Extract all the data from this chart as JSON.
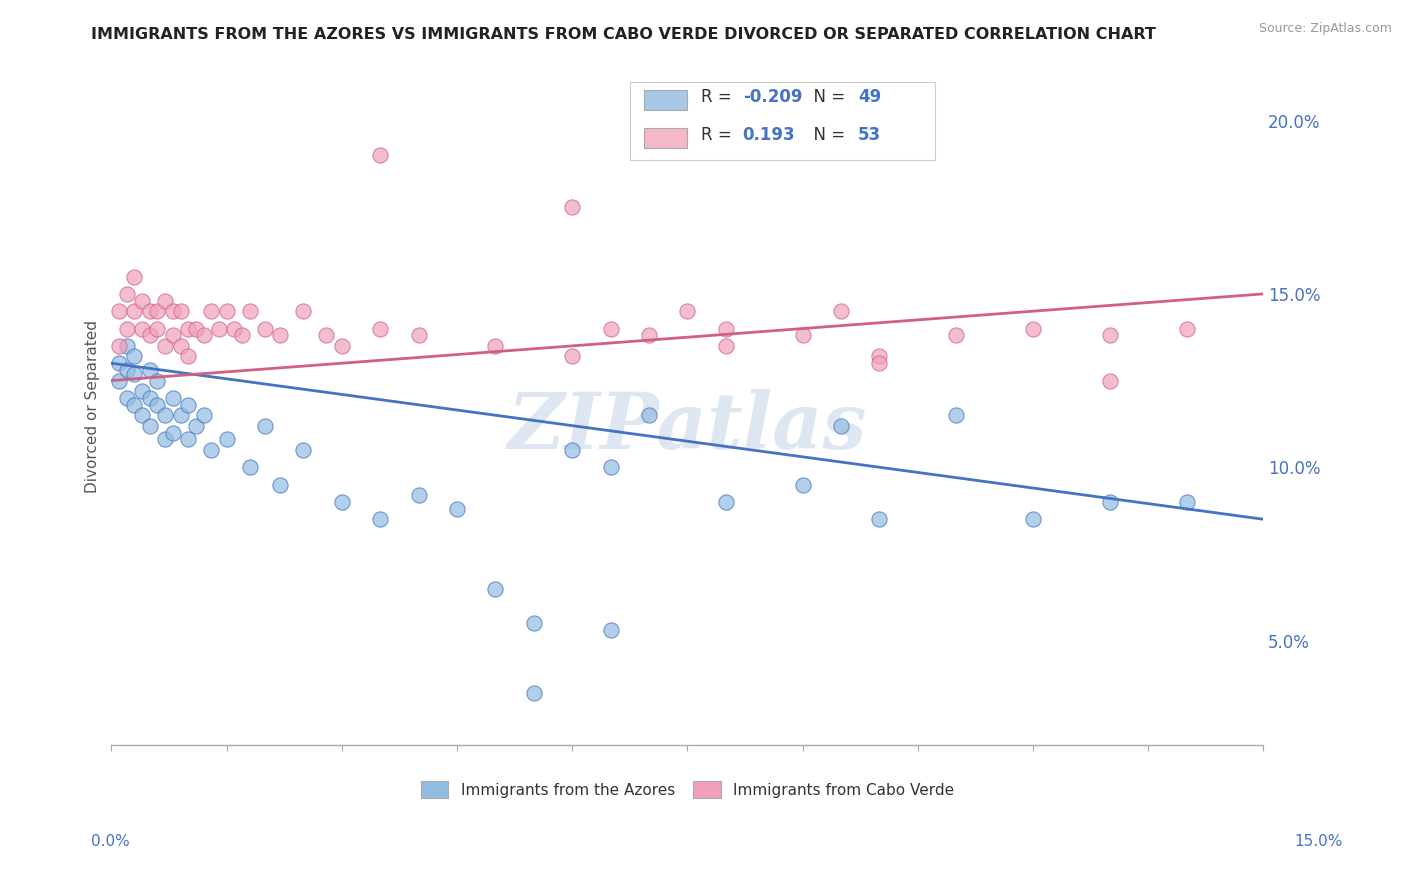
{
  "title": "IMMIGRANTS FROM THE AZORES VS IMMIGRANTS FROM CABO VERDE DIVORCED OR SEPARATED CORRELATION CHART",
  "source": "Source: ZipAtlas.com",
  "ylabel": "Divorced or Separated",
  "ytick_labels": [
    "5.0%",
    "10.0%",
    "15.0%",
    "20.0%"
  ],
  "ytick_values": [
    0.05,
    0.1,
    0.15,
    0.2
  ],
  "xlim": [
    0.0,
    0.15
  ],
  "ylim": [
    0.02,
    0.215
  ],
  "legend_entries": [
    {
      "label_r": "R = ",
      "label_rv": "-0.209",
      "label_n": "  N = ",
      "label_nv": "49",
      "color": "#a8c8e8"
    },
    {
      "label_r": "R =  ",
      "label_rv": "0.193",
      "label_n": "  N = ",
      "label_nv": "53",
      "color": "#f4b8c8"
    }
  ],
  "legend_label_azores": "Immigrants from the Azores",
  "legend_label_cabo": "Immigrants from Cabo Verde",
  "color_azores": "#92bce0",
  "color_cabo": "#f0a0bc",
  "line_color_azores": "#4472c4",
  "line_color_cabo": "#d06080",
  "watermark": "ZIPatlas",
  "watermark_color": "#c8d8e8",
  "azores_trend_x": [
    0.0,
    0.15
  ],
  "azores_trend_y": [
    0.13,
    0.085
  ],
  "cabo_trend_x": [
    0.0,
    0.15
  ],
  "cabo_trend_y": [
    0.125,
    0.15
  ],
  "azores_x": [
    0.001,
    0.001,
    0.002,
    0.002,
    0.002,
    0.003,
    0.003,
    0.003,
    0.004,
    0.004,
    0.005,
    0.005,
    0.005,
    0.006,
    0.006,
    0.007,
    0.007,
    0.008,
    0.008,
    0.009,
    0.01,
    0.01,
    0.011,
    0.012,
    0.013,
    0.015,
    0.018,
    0.02,
    0.022,
    0.025,
    0.03,
    0.035,
    0.04,
    0.045,
    0.05,
    0.055,
    0.06,
    0.065,
    0.07,
    0.08,
    0.09,
    0.095,
    0.1,
    0.11,
    0.12,
    0.13,
    0.14,
    0.065,
    0.055
  ],
  "azores_y": [
    0.13,
    0.125,
    0.135,
    0.128,
    0.12,
    0.132,
    0.127,
    0.118,
    0.122,
    0.115,
    0.128,
    0.12,
    0.112,
    0.125,
    0.118,
    0.115,
    0.108,
    0.12,
    0.11,
    0.115,
    0.118,
    0.108,
    0.112,
    0.115,
    0.105,
    0.108,
    0.1,
    0.112,
    0.095,
    0.105,
    0.09,
    0.085,
    0.092,
    0.088,
    0.065,
    0.055,
    0.105,
    0.1,
    0.115,
    0.09,
    0.095,
    0.112,
    0.085,
    0.115,
    0.085,
    0.09,
    0.09,
    0.053,
    0.035
  ],
  "cabo_x": [
    0.001,
    0.001,
    0.002,
    0.002,
    0.003,
    0.003,
    0.004,
    0.004,
    0.005,
    0.005,
    0.006,
    0.006,
    0.007,
    0.007,
    0.008,
    0.008,
    0.009,
    0.009,
    0.01,
    0.01,
    0.011,
    0.012,
    0.013,
    0.014,
    0.015,
    0.016,
    0.017,
    0.018,
    0.02,
    0.022,
    0.025,
    0.028,
    0.03,
    0.035,
    0.04,
    0.05,
    0.06,
    0.065,
    0.07,
    0.075,
    0.08,
    0.09,
    0.095,
    0.1,
    0.11,
    0.12,
    0.13,
    0.14,
    0.035,
    0.06,
    0.08,
    0.1,
    0.13
  ],
  "cabo_y": [
    0.145,
    0.135,
    0.15,
    0.14,
    0.155,
    0.145,
    0.148,
    0.14,
    0.145,
    0.138,
    0.145,
    0.14,
    0.148,
    0.135,
    0.145,
    0.138,
    0.145,
    0.135,
    0.14,
    0.132,
    0.14,
    0.138,
    0.145,
    0.14,
    0.145,
    0.14,
    0.138,
    0.145,
    0.14,
    0.138,
    0.145,
    0.138,
    0.135,
    0.14,
    0.138,
    0.135,
    0.132,
    0.14,
    0.138,
    0.145,
    0.14,
    0.138,
    0.145,
    0.132,
    0.138,
    0.14,
    0.138,
    0.14,
    0.19,
    0.175,
    0.135,
    0.13,
    0.125
  ]
}
